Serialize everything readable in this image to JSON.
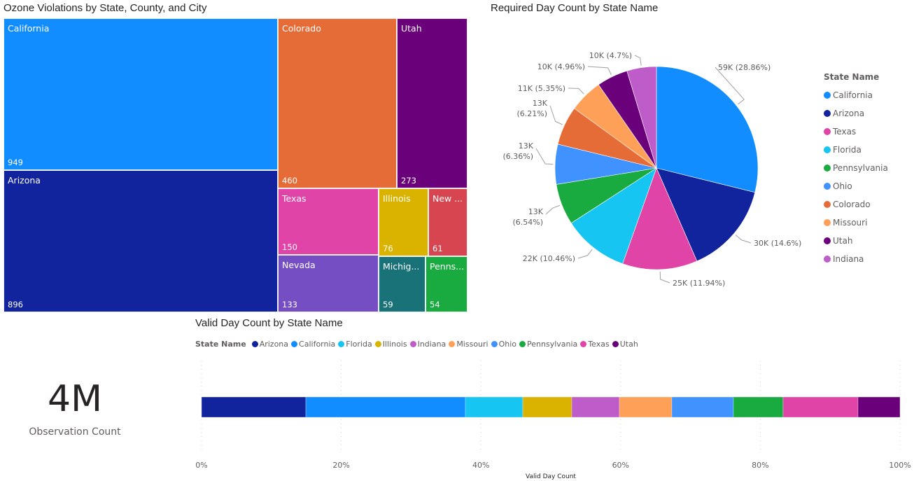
{
  "treemap": {
    "title": "Ozone Violations by State, County, and City",
    "tiles": [
      {
        "label": "California",
        "value": "949",
        "color": "#118DFF"
      },
      {
        "label": "Arizona",
        "value": "896",
        "color": "#12239E"
      },
      {
        "label": "Colorado",
        "value": "460",
        "color": "#E66C37"
      },
      {
        "label": "Utah",
        "value": "273",
        "color": "#6B007B"
      },
      {
        "label": "Texas",
        "value": "150",
        "color": "#E044A7"
      },
      {
        "label": "Nevada",
        "value": "133",
        "color": "#744EC2"
      },
      {
        "label": "Illinois",
        "value": "76",
        "color": "#D9B300"
      },
      {
        "label": "New ...",
        "value": "61",
        "color": "#D64550"
      },
      {
        "label": "Michig...",
        "value": "59",
        "color": "#197278"
      },
      {
        "label": "Penns...",
        "value": "54",
        "color": "#1AAB40"
      }
    ]
  },
  "chart_data": [
    {
      "type": "treemap",
      "title": "Ozone Violations by State, County, and City",
      "categories": [
        "California",
        "Arizona",
        "Colorado",
        "Utah",
        "Texas",
        "Nevada",
        "Illinois",
        "New ...",
        "Michig...",
        "Penns..."
      ],
      "values": [
        949,
        896,
        460,
        273,
        150,
        133,
        76,
        61,
        59,
        54
      ]
    },
    {
      "type": "pie",
      "title": "Required Day Count by State Name",
      "legend_title": "State Name",
      "legend_position": "right",
      "categories": [
        "California",
        "Arizona",
        "Texas",
        "Florida",
        "Pennsylvania",
        "Ohio",
        "Colorado",
        "Missouri",
        "Utah",
        "Indiana"
      ],
      "values": [
        59000,
        30000,
        25000,
        22000,
        13000,
        13000,
        13000,
        11000,
        10000,
        10000
      ],
      "percents": [
        28.86,
        14.6,
        11.94,
        10.46,
        6.54,
        6.36,
        6.21,
        5.35,
        4.96,
        4.7
      ],
      "data_labels": [
        "59K (28.86%)",
        "30K (14.6%)",
        "25K (11.94%)",
        "22K (10.46%)",
        "13K|(6.54%)",
        "13K|(6.36%)",
        "13K|(6.21%)",
        "11K (5.35%)",
        "10K (4.96%)",
        "10K (4.7%)"
      ],
      "colors": [
        "#118DFF",
        "#12239E",
        "#E044A7",
        "#16C5F1",
        "#1AAB40",
        "#4092FF",
        "#E66C37",
        "#FFA058",
        "#6B007B",
        "#BE5DC9"
      ]
    },
    {
      "type": "bar",
      "subtype": "100% stacked bar",
      "title": "Valid Day Count by State Name",
      "legend_title": "State Name",
      "legend_position": "top",
      "series": [
        {
          "name": "Arizona",
          "values": [
            14.9
          ],
          "color": "#12239E"
        },
        {
          "name": "California",
          "values": [
            22.8
          ],
          "color": "#118DFF"
        },
        {
          "name": "Florida",
          "values": [
            8.2
          ],
          "color": "#16C5F1"
        },
        {
          "name": "Illinois",
          "values": [
            7.0
          ],
          "color": "#D9B300"
        },
        {
          "name": "Indiana",
          "values": [
            6.8
          ],
          "color": "#BE5DC9"
        },
        {
          "name": "Missouri",
          "values": [
            7.5
          ],
          "color": "#FFA058"
        },
        {
          "name": "Ohio",
          "values": [
            8.8
          ],
          "color": "#4092FF"
        },
        {
          "name": "Pennsylvania",
          "values": [
            7.1
          ],
          "color": "#1AAB40"
        },
        {
          "name": "Texas",
          "values": [
            10.7
          ],
          "color": "#E044A7"
        },
        {
          "name": "Utah",
          "values": [
            6.0
          ],
          "color": "#6B007B"
        }
      ],
      "xlabel": "Valid Day Count",
      "xlim": [
        0,
        100
      ],
      "xticks": [
        "0%",
        "20%",
        "40%",
        "60%",
        "80%",
        "100%"
      ],
      "grid": true
    }
  ],
  "pie": {
    "title": "Required Day Count by State Name",
    "legend_title": "State Name"
  },
  "bar": {
    "title": "Valid Day Count by State Name",
    "legend_title": "State Name",
    "xlabel": "Valid Day Count"
  },
  "kpi": {
    "value": "4M",
    "label": "Observation Count"
  }
}
